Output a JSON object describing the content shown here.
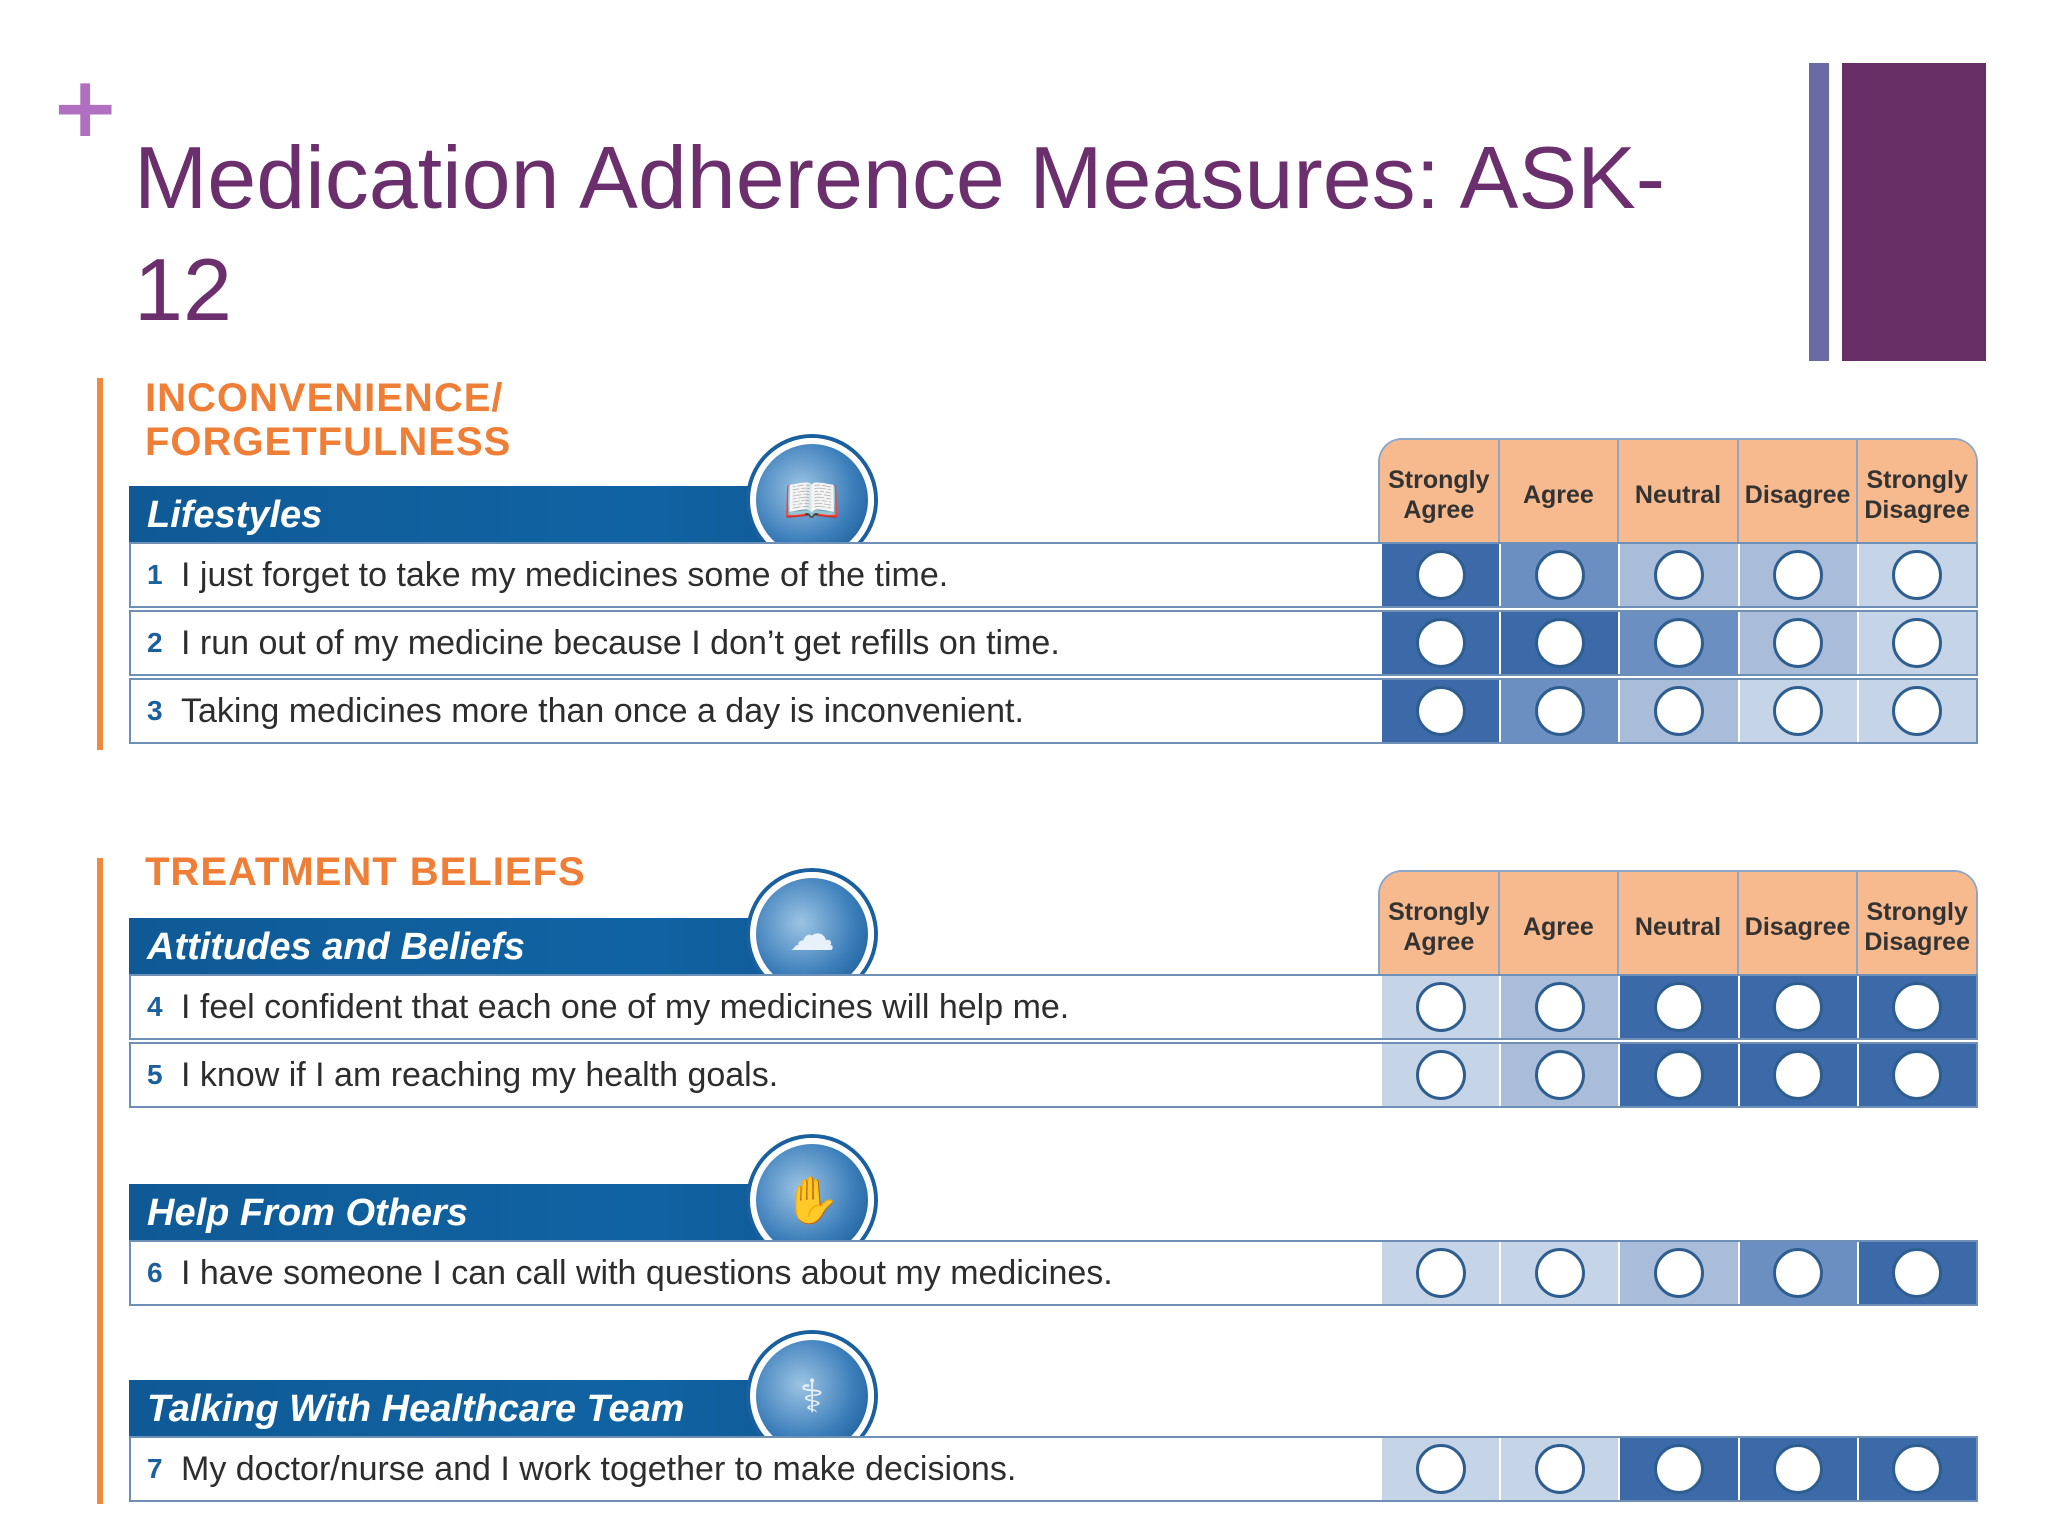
{
  "slide": {
    "title_line1": "Medication Adherence Measures: ASK-",
    "title_line2": "12"
  },
  "scale_labels": [
    "Strongly\nAgree",
    "Agree",
    "Neutral",
    "Disagree",
    "Strongly\nDisagree"
  ],
  "sections": [
    {
      "title": "INCONVENIENCE/\nFORGETFULNESS",
      "groups": [
        {
          "label": "Lifestyles",
          "icon": "book-icon",
          "items": [
            {
              "num": "1",
              "text": "I just forget to take my medicines some of the time."
            },
            {
              "num": "2",
              "text": "I run out of my medicine because I don’t get refills on time."
            },
            {
              "num": "3",
              "text": "Taking medicines more than once a day is inconvenient."
            }
          ]
        }
      ]
    },
    {
      "title": "TREATMENT BELIEFS",
      "groups": [
        {
          "label": "Attitudes and Beliefs",
          "icon": "thought-cloud-icon",
          "items": [
            {
              "num": "4",
              "text": "I feel confident that each one of my medicines will help me."
            },
            {
              "num": "5",
              "text": "I know if I am reaching my health goals."
            }
          ]
        },
        {
          "label": "Help From Others",
          "icon": "helping-hands-icon",
          "items": [
            {
              "num": "6",
              "text": "I have someone I can call with questions about my medicines."
            }
          ]
        },
        {
          "label": "Talking With Healthcare Team",
          "icon": "caduceus-icon",
          "items": [
            {
              "num": "7",
              "text": "My doctor/nurse and I work together to make decisions."
            }
          ]
        }
      ]
    }
  ]
}
